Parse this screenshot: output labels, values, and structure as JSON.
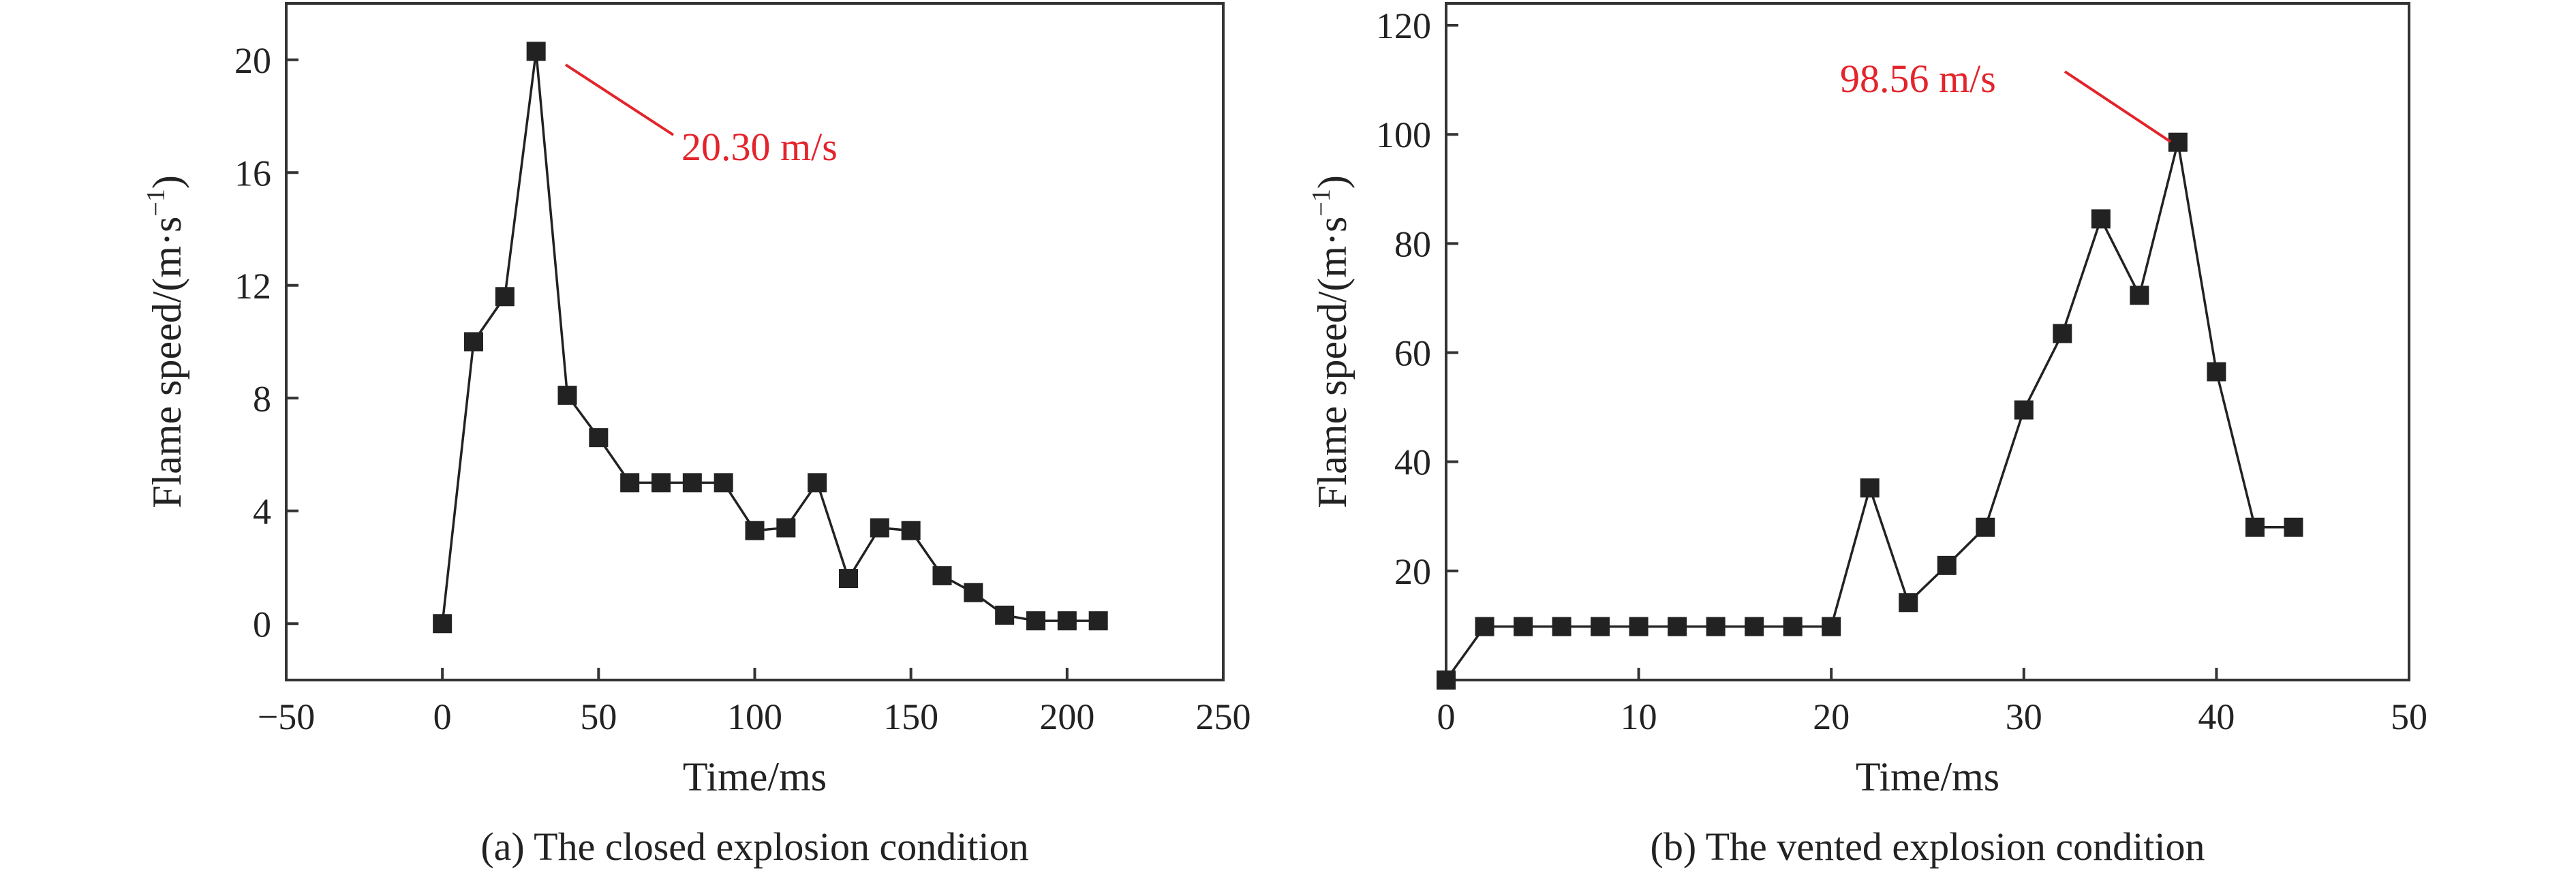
{
  "chart_data": [
    {
      "type": "line",
      "caption": "(a) The closed explosion condition",
      "xlabel": "Time/ms",
      "ylabel_main": "Flame speed/(m·s",
      "ylabel_sup": "−1",
      "ylabel_close": ")",
      "xlim": [
        -50,
        250
      ],
      "ylim": [
        -2,
        22
      ],
      "xticks": [
        {
          "value": -50,
          "label": "−50"
        },
        {
          "value": 0,
          "label": "0"
        },
        {
          "value": 50,
          "label": "50"
        },
        {
          "value": 100,
          "label": "100"
        },
        {
          "value": 150,
          "label": "150"
        },
        {
          "value": 200,
          "label": "200"
        },
        {
          "value": 250,
          "label": "250"
        }
      ],
      "yticks": [
        {
          "value": 0,
          "label": "0"
        },
        {
          "value": 4,
          "label": "4"
        },
        {
          "value": 8,
          "label": "8"
        },
        {
          "value": 12,
          "label": "12"
        },
        {
          "value": 16,
          "label": "16"
        },
        {
          "value": 20,
          "label": "20"
        }
      ],
      "series": [
        {
          "color": "#222222",
          "marker": "square",
          "x": [
            0,
            10,
            20,
            30,
            40,
            50,
            60,
            70,
            80,
            90,
            100,
            110,
            120,
            130,
            140,
            150,
            160,
            170,
            180,
            190,
            200,
            210
          ],
          "y": [
            0,
            10.0,
            11.6,
            20.3,
            8.1,
            6.6,
            5.0,
            5.0,
            5.0,
            5.0,
            3.3,
            3.4,
            5.0,
            1.6,
            3.4,
            3.3,
            1.7,
            1.1,
            0.3,
            0.1,
            0.1,
            0.1
          ]
        }
      ],
      "annotation": {
        "text": "20.30 m/s",
        "x": 30,
        "y": 20.3,
        "color": "#e3242b"
      }
    },
    {
      "type": "line",
      "caption": "(b) The vented explosion condition",
      "xlabel": "Time/ms",
      "ylabel_main": "Flame speed/(m·s",
      "ylabel_sup": "−1",
      "ylabel_close": ")",
      "xlim": [
        0,
        50
      ],
      "ylim": [
        0,
        124
      ],
      "xticks": [
        {
          "value": 0,
          "label": "0"
        },
        {
          "value": 10,
          "label": "10"
        },
        {
          "value": 20,
          "label": "20"
        },
        {
          "value": 30,
          "label": "30"
        },
        {
          "value": 40,
          "label": "40"
        },
        {
          "value": 50,
          "label": "50"
        }
      ],
      "yticks": [
        {
          "value": 20,
          "label": "20"
        },
        {
          "value": 40,
          "label": "40"
        },
        {
          "value": 60,
          "label": "60"
        },
        {
          "value": 80,
          "label": "80"
        },
        {
          "value": 100,
          "label": "100"
        },
        {
          "value": 120,
          "label": "120"
        }
      ],
      "series": [
        {
          "color": "#222222",
          "marker": "square",
          "x": [
            0,
            2,
            4,
            6,
            8,
            10,
            12,
            14,
            16,
            18,
            20,
            22,
            24,
            26,
            28,
            30,
            32,
            34,
            36,
            38,
            40,
            42,
            44
          ],
          "y": [
            0,
            9.8,
            9.8,
            9.8,
            9.8,
            9.8,
            9.8,
            9.8,
            9.8,
            9.8,
            9.8,
            35.2,
            14.2,
            21.0,
            28.0,
            49.5,
            63.5,
            84.5,
            70.5,
            98.56,
            56.5,
            28.0,
            28.0
          ]
        }
      ],
      "annotation": {
        "text": "98.56 m/s",
        "x": 38,
        "y": 98.56,
        "color": "#e3242b"
      }
    }
  ]
}
